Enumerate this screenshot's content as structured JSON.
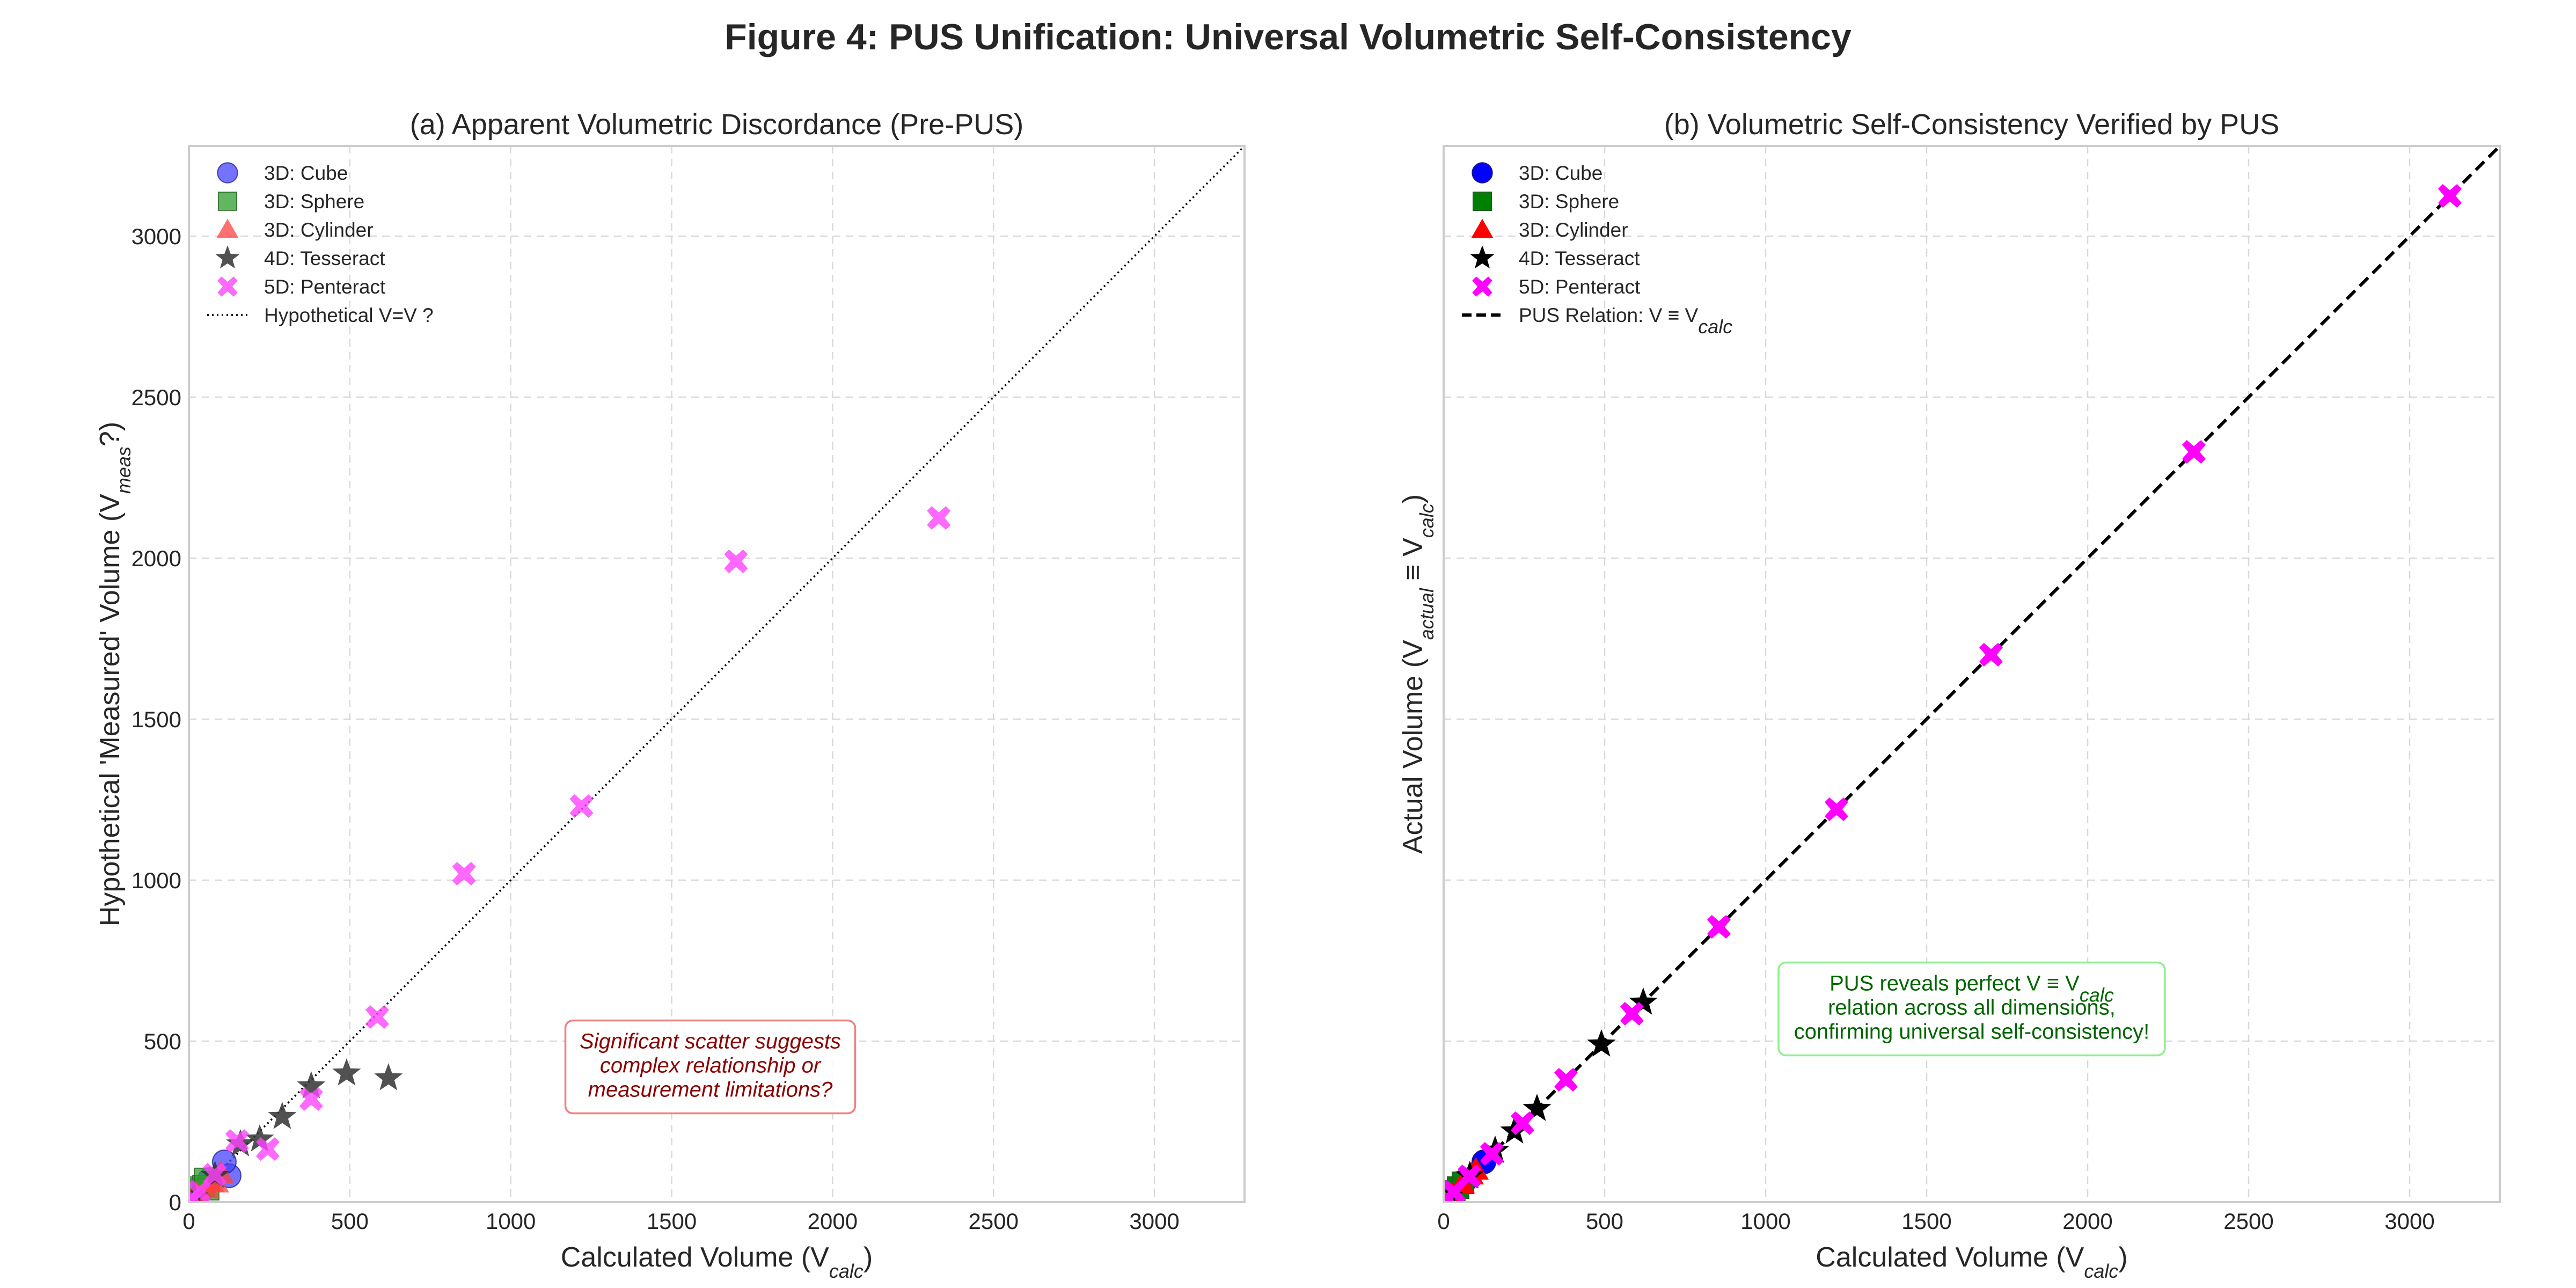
{
  "figure_title": "Figure 4: PUS Unification: Universal Volumetric Self-Consistency",
  "chart_data": [
    {
      "id": "a",
      "type": "scatter",
      "title": "(a) Apparent Volumetric Discordance (Pre-PUS)",
      "xlabel": "Calculated Volume (V",
      "xlabel_sub": "calc",
      "xlabel_tail": ")",
      "ylabel": "Hypothetical 'Measured' Volume (V",
      "ylabel_sub": "meas",
      "ylabel_tail": "?)",
      "xlim": [
        0,
        3280
      ],
      "ylim": [
        0,
        3280
      ],
      "xticks": [
        0,
        500,
        1000,
        1500,
        2000,
        2500,
        3000
      ],
      "yticks": [
        0,
        500,
        1000,
        1500,
        2000,
        2500,
        3000
      ],
      "show_yticks": true,
      "grid": true,
      "legend_position": "top-left",
      "reference_line": {
        "label": "Hypothetical V=V ?",
        "style": "dotted",
        "color": "#000000"
      },
      "annotation": {
        "lines": [
          "Significant scatter suggests",
          "complex relationship or",
          "measurement limitations?"
        ],
        "color": "#8b0000",
        "border": "#f08080",
        "at": [
          1620,
          420
        ]
      },
      "series": [
        {
          "name": "3D: Cube",
          "marker": "circle",
          "color": "#4444ff",
          "alpha": 0.75,
          "points": [
            [
              1,
              1
            ],
            [
              8,
              9
            ],
            [
              27,
              25
            ],
            [
              64,
              70
            ],
            [
              125,
              82
            ],
            [
              110,
              125
            ]
          ]
        },
        {
          "name": "3D: Sphere",
          "marker": "square",
          "color": "#2e9e2e",
          "alpha": 0.75,
          "points": [
            [
              4,
              5
            ],
            [
              12,
              14
            ],
            [
              20,
              38
            ],
            [
              33,
              45
            ],
            [
              45,
              50
            ],
            [
              60,
              40
            ],
            [
              50,
              72
            ]
          ]
        },
        {
          "name": "3D: Cylinder",
          "marker": "triangle",
          "color": "#ff4040",
          "alpha": 0.75,
          "points": [
            [
              3,
              3
            ],
            [
              25,
              25
            ],
            [
              57,
              42
            ],
            [
              85,
              60
            ],
            [
              100,
              90
            ],
            [
              70,
              62
            ]
          ]
        },
        {
          "name": "4D: Tesseract",
          "marker": "star",
          "color": "#333333",
          "alpha": 0.85,
          "points": [
            [
              16,
              15
            ],
            [
              81,
              82
            ],
            [
              160,
              180
            ],
            [
              220,
              195
            ],
            [
              290,
              265
            ],
            [
              380,
              360
            ],
            [
              490,
              400
            ],
            [
              620,
              385
            ]
          ]
        },
        {
          "name": "5D: Penteract",
          "marker": "x",
          "color": "#ff44ff",
          "alpha": 0.8,
          "points": [
            [
              2,
              2
            ],
            [
              10,
              10
            ],
            [
              32,
              32
            ],
            [
              80,
              85
            ],
            [
              150,
              190
            ],
            [
              245,
              165
            ],
            [
              380,
              320
            ],
            [
              585,
              575
            ],
            [
              855,
              1020
            ],
            [
              1220,
              1230
            ],
            [
              1700,
              1990
            ],
            [
              2330,
              2125
            ]
          ]
        }
      ]
    },
    {
      "id": "b",
      "type": "scatter",
      "title": "(b) Volumetric Self-Consistency Verified by PUS",
      "xlabel": "Calculated Volume (V",
      "xlabel_sub": "calc",
      "xlabel_tail": ")",
      "ylabel": "Actual Volume (V",
      "ylabel_sub": "actual",
      "ylabel_mid": " ≡ V",
      "ylabel_sub2": "calc",
      "ylabel_tail": ")",
      "xlim": [
        0,
        3280
      ],
      "ylim": [
        0,
        3280
      ],
      "xticks": [
        0,
        500,
        1000,
        1500,
        2000,
        2500,
        3000
      ],
      "yticks": [
        0,
        500,
        1000,
        1500,
        2000,
        2500,
        3000
      ],
      "show_yticks": false,
      "grid": true,
      "legend_position": "top-left",
      "reference_line": {
        "label": "PUS Relation: V ≡ V",
        "label_sub": "calc",
        "style": "dashed",
        "color": "#000000"
      },
      "annotation": {
        "lines": [
          "PUS reveals perfect V ≡ V",
          "relation across all dimensions,",
          "confirming universal self-consistency!"
        ],
        "line1_sub": "calc",
        "color": "#006400",
        "border": "#90ee90",
        "at": [
          1640,
          600
        ]
      },
      "series": [
        {
          "name": "3D: Cube",
          "marker": "circle",
          "color": "#0000ff",
          "alpha": 1,
          "points": [
            [
              1,
              1
            ],
            [
              8,
              8
            ],
            [
              27,
              27
            ],
            [
              64,
              64
            ],
            [
              125,
              125
            ]
          ]
        },
        {
          "name": "3D: Sphere",
          "marker": "square",
          "color": "#008000",
          "alpha": 1,
          "points": [
            [
              4,
              4
            ],
            [
              12,
              12
            ],
            [
              20,
              20
            ],
            [
              33,
              33
            ],
            [
              45,
              45
            ],
            [
              60,
              60
            ]
          ]
        },
        {
          "name": "3D: Cylinder",
          "marker": "triangle",
          "color": "#ff0000",
          "alpha": 1,
          "points": [
            [
              3,
              3
            ],
            [
              25,
              25
            ],
            [
              57,
              57
            ],
            [
              85,
              85
            ],
            [
              100,
              100
            ]
          ]
        },
        {
          "name": "4D: Tesseract",
          "marker": "star",
          "color": "#000000",
          "alpha": 1,
          "points": [
            [
              16,
              16
            ],
            [
              81,
              81
            ],
            [
              160,
              160
            ],
            [
              220,
              220
            ],
            [
              290,
              290
            ],
            [
              490,
              490
            ],
            [
              620,
              620
            ]
          ]
        },
        {
          "name": "5D: Penteract",
          "marker": "x",
          "color": "#ff00ff",
          "alpha": 1,
          "points": [
            [
              2,
              2
            ],
            [
              10,
              10
            ],
            [
              32,
              32
            ],
            [
              80,
              80
            ],
            [
              150,
              150
            ],
            [
              245,
              245
            ],
            [
              380,
              380
            ],
            [
              585,
              585
            ],
            [
              855,
              855
            ],
            [
              1220,
              1220
            ],
            [
              1700,
              1700
            ],
            [
              2330,
              2330
            ],
            [
              3125,
              3125
            ]
          ]
        }
      ]
    }
  ]
}
